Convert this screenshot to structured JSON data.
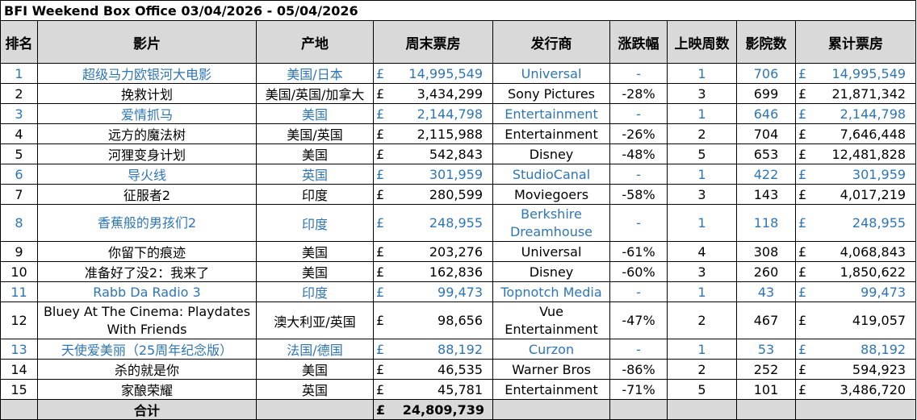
{
  "title": "BFI Weekend Box Office 03/04/2026 - 05/04/2026",
  "headers": {
    "rank": "排名",
    "film": "影片",
    "origin": "产地",
    "weekend": "周末票房",
    "distributor": "发行商",
    "change": "涨跌幅",
    "weeks": "上映周数",
    "cinemas": "影院数",
    "total": "累计票房"
  },
  "currency": "£",
  "rows": [
    {
      "rank": "1",
      "film": "超级马力欧银河大电影",
      "origin": "美国/日本",
      "weekend": "14,995,549",
      "distributor": "Universal",
      "change": "-",
      "weeks": "1",
      "cinemas": "706",
      "total": "14,995,549",
      "is_new": true
    },
    {
      "rank": "2",
      "film": "挽救计划",
      "origin": "美国/英国/加拿大",
      "weekend": "3,434,299",
      "distributor": "Sony Pictures",
      "change": "-28%",
      "weeks": "3",
      "cinemas": "699",
      "total": "21,871,342",
      "is_new": false
    },
    {
      "rank": "3",
      "film": "爱情抓马",
      "origin": "美国",
      "weekend": "2,144,798",
      "distributor": "Entertainment",
      "change": "-",
      "weeks": "1",
      "cinemas": "646",
      "total": "2,144,798",
      "is_new": true
    },
    {
      "rank": "4",
      "film": "远方的魔法树",
      "origin": "美国/英国",
      "weekend": "2,115,988",
      "distributor": "Entertainment",
      "change": "-26%",
      "weeks": "2",
      "cinemas": "704",
      "total": "7,646,448",
      "is_new": false
    },
    {
      "rank": "5",
      "film": "河狸变身计划",
      "origin": "美国",
      "weekend": "542,843",
      "distributor": "Disney",
      "change": "-48%",
      "weeks": "5",
      "cinemas": "653",
      "total": "12,481,828",
      "is_new": false
    },
    {
      "rank": "6",
      "film": "导火线",
      "origin": "英国",
      "weekend": "301,959",
      "distributor": "StudioCanal",
      "change": "-",
      "weeks": "1",
      "cinemas": "422",
      "total": "301,959",
      "is_new": true
    },
    {
      "rank": "7",
      "film": "征服者2",
      "origin": "印度",
      "weekend": "280,599",
      "distributor": "Moviegoers",
      "change": "-58%",
      "weeks": "3",
      "cinemas": "143",
      "total": "4,017,219",
      "is_new": false
    },
    {
      "rank": "8",
      "film": "香蕉般的男孩们2",
      "origin": "印度",
      "weekend": "248,955",
      "distributor": "Berkshire Dreamhouse",
      "change": "-",
      "weeks": "1",
      "cinemas": "118",
      "total": "248,955",
      "is_new": true,
      "tall": true
    },
    {
      "rank": "9",
      "film": "你留下的痕迹",
      "origin": "美国",
      "weekend": "203,276",
      "distributor": "Universal",
      "change": "-61%",
      "weeks": "4",
      "cinemas": "308",
      "total": "4,068,843",
      "is_new": false
    },
    {
      "rank": "10",
      "film": "准备好了没2：我来了",
      "origin": "美国",
      "weekend": "162,836",
      "distributor": "Disney",
      "change": "-60%",
      "weeks": "3",
      "cinemas": "260",
      "total": "1,850,622",
      "is_new": false
    },
    {
      "rank": "11",
      "film": "Rabb Da Radio 3",
      "origin": "印度",
      "weekend": "99,473",
      "distributor": "Topnotch Media",
      "change": "-",
      "weeks": "1",
      "cinemas": "43",
      "total": "99,473",
      "is_new": true
    },
    {
      "rank": "12",
      "film": "Bluey At The Cinema: Playdates With Friends",
      "origin": "澳大利亚/英国",
      "weekend": "98,656",
      "distributor": "Vue Entertainment",
      "change": "-47%",
      "weeks": "2",
      "cinemas": "467",
      "total": "419,057",
      "is_new": false,
      "tall": true
    },
    {
      "rank": "13",
      "film": "天使爱美丽（25周年纪念版）",
      "origin": "法国/德国",
      "weekend": "88,192",
      "distributor": "Curzon",
      "change": "-",
      "weeks": "1",
      "cinemas": "53",
      "total": "88,192",
      "is_new": true
    },
    {
      "rank": "14",
      "film": "杀的就是你",
      "origin": "美国",
      "weekend": "46,535",
      "distributor": "Warner Bros",
      "change": "-86%",
      "weeks": "2",
      "cinemas": "252",
      "total": "594,923",
      "is_new": false
    },
    {
      "rank": "15",
      "film": "家酿荣耀",
      "origin": "英国",
      "weekend": "45,781",
      "distributor": "Entertainment",
      "change": "-71%",
      "weeks": "5",
      "cinemas": "101",
      "total": "3,486,720",
      "is_new": false
    }
  ],
  "footer": {
    "label": "合计",
    "currency": "£",
    "weekend_total": "24,809,739"
  },
  "colors": {
    "header_bg": "#d9d9d9",
    "new_release_text": "#2e75b6"
  }
}
